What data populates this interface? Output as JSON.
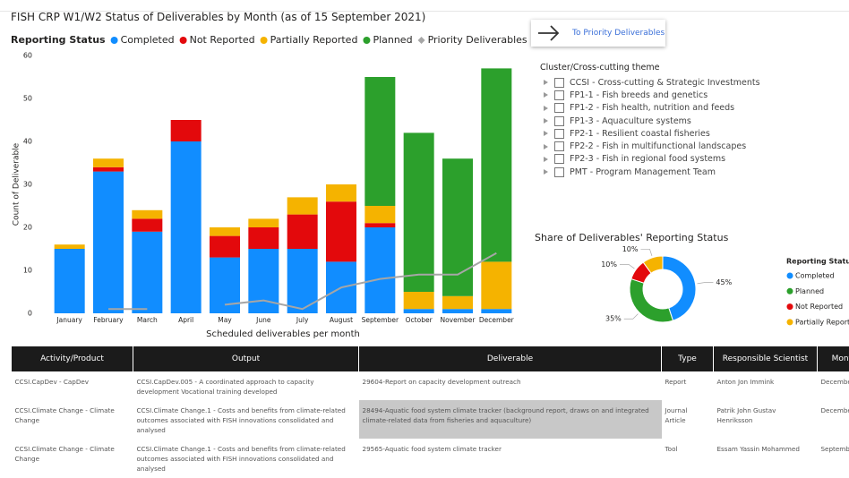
{
  "header": {
    "title": "FISH CRP W1/W2 Status of Deliverables by Month (as of 15 September 2021)",
    "button": "To Priority Deliverables"
  },
  "chart_data": [
    {
      "type": "bar",
      "stacked": true,
      "legend_title": "Reporting Status",
      "x_label": "Scheduled deliverables per month",
      "y_label": "Count of Deliverable",
      "categories": [
        "January",
        "February",
        "March",
        "April",
        "May",
        "June",
        "July",
        "August",
        "September",
        "October",
        "November",
        "December"
      ],
      "series": [
        {
          "name": "Completed",
          "color": "#118dff",
          "values": [
            15,
            33,
            19,
            40,
            13,
            15,
            15,
            12,
            20,
            1,
            1,
            1
          ]
        },
        {
          "name": "Not Reported",
          "color": "#e3090c",
          "values": [
            0,
            1,
            3,
            5,
            5,
            5,
            8,
            14,
            1,
            0,
            0,
            0
          ]
        },
        {
          "name": "Partially Reported",
          "color": "#f5b300",
          "values": [
            1,
            2,
            2,
            0,
            2,
            2,
            4,
            4,
            4,
            4,
            3,
            11
          ]
        },
        {
          "name": "Planned",
          "color": "#2ca02c",
          "values": [
            0,
            0,
            0,
            0,
            0,
            0,
            0,
            0,
            30,
            37,
            32,
            45
          ]
        },
        {
          "name": "Priority Deliverables (Sept)",
          "type": "line",
          "color": "#a6a6a6",
          "values": [
            null,
            1,
            1,
            null,
            2,
            3,
            1,
            6,
            8,
            9,
            9,
            14
          ]
        }
      ],
      "ylim": [
        0,
        60
      ],
      "yticks": [
        0,
        10,
        20,
        30,
        40,
        50,
        60
      ]
    },
    {
      "type": "pie",
      "donut": true,
      "title": "Share of Deliverables' Reporting Status",
      "legend_title": "Reporting Status",
      "categories": [
        "Completed",
        "Planned",
        "Not Reported",
        "Partially Reported"
      ],
      "values": [
        45,
        35,
        10,
        10
      ],
      "value_labels": [
        "45%",
        "35%",
        "10%",
        "10%"
      ],
      "colors": [
        "#118dff",
        "#2ca02c",
        "#e3090c",
        "#f5b300"
      ]
    }
  ],
  "slicer": {
    "title": "Cluster/Cross-cutting theme",
    "items": [
      "CCSI - Cross-cutting & Strategic Investments",
      "FP1-1 - Fish breeds and genetics",
      "FP1-2 - Fish health, nutrition and feeds",
      "FP1-3 - Aquaculture systems",
      "FP2-1 - Resilient coastal fisheries",
      "FP2-2 - Fish in multifunctional landscapes",
      "FP2-3 - Fish in regional food systems",
      "PMT - Program Management Team"
    ]
  },
  "table": {
    "columns": [
      "Activity/Product",
      "Output",
      "Deliverable",
      "Type",
      "Responsible Scientist",
      "Month"
    ],
    "rows": [
      [
        "CCSI.CapDev - CapDev",
        "CCSI.CapDev.005 - A coordinated approach to capacity development Vocational training developed",
        "29604-Report on capacity development outreach",
        "Report",
        "Anton Jon Immink",
        "December"
      ],
      [
        "CCSI.Climate Change - Climate Change",
        "CCSI.Climate Change.1 - Costs and benefits from climate-related outcomes associated with FISH innovations consolidated and analysed",
        "28494-Aquatic food system climate tracker (background report, draws on and integrated climate-related data from fisheries and aquaculture)",
        "Journal Article",
        "Patrik John Gustav Henriksson",
        "December"
      ],
      [
        "CCSI.Climate Change - Climate Change",
        "CCSI.Climate Change.1 - Costs and benefits from climate-related outcomes associated with FISH innovations consolidated and analysed",
        "29565-Aquatic food system climate tracker",
        "Tool",
        "Essam Yassin Mohammed",
        "September"
      ]
    ]
  }
}
